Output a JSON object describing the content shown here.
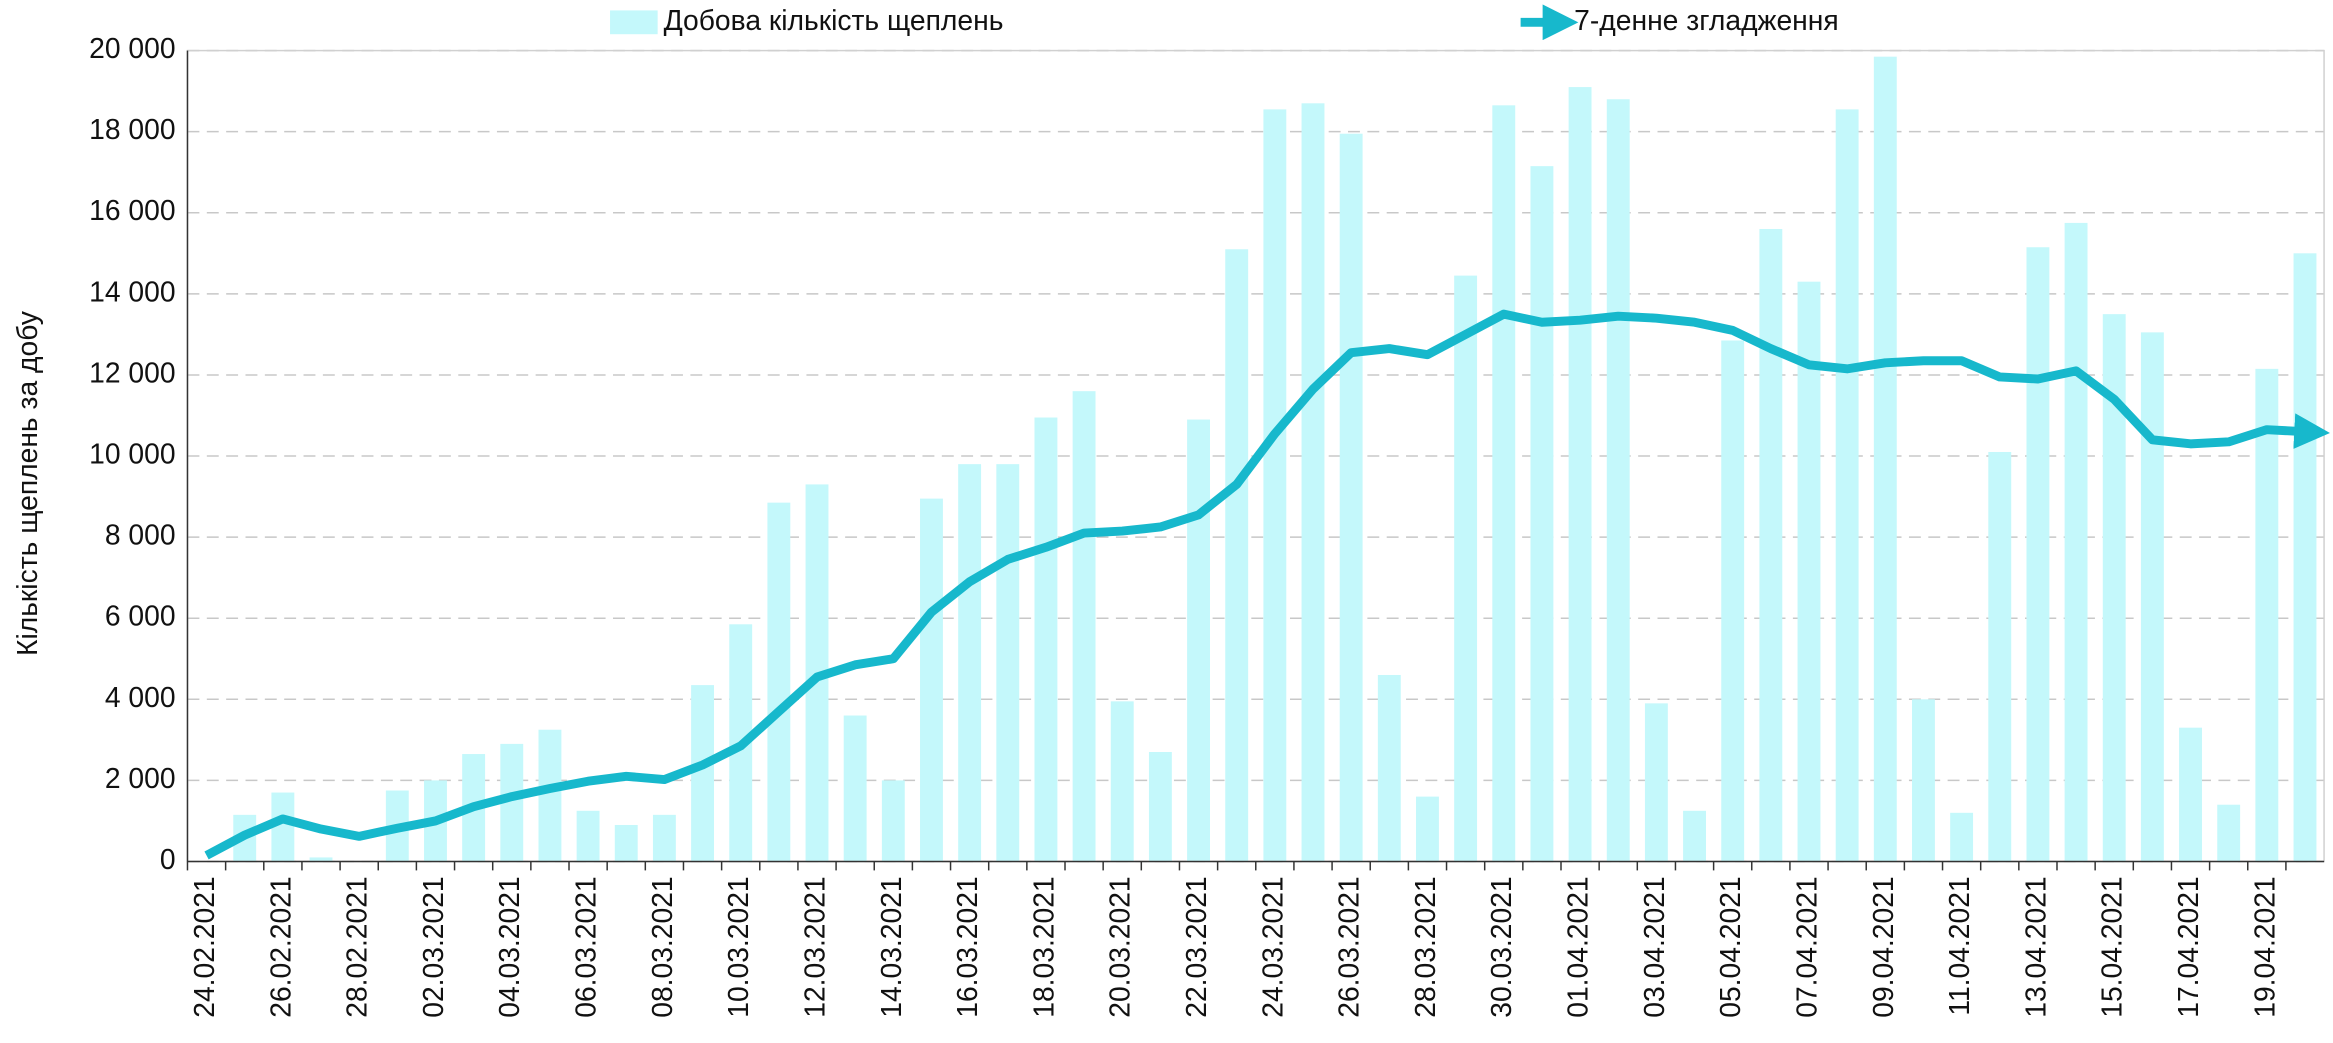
{
  "chart_data": {
    "type": "bar-line",
    "y_axis_label": "Кількість щеплень за добу",
    "categories": [
      "24.02.2021",
      null,
      "26.02.2021",
      null,
      "28.02.2021",
      null,
      "02.03.2021",
      null,
      "04.03.2021",
      null,
      "06.03.2021",
      null,
      "08.03.2021",
      null,
      "10.03.2021",
      null,
      "12.03.2021",
      null,
      "14.03.2021",
      null,
      "16.03.2021",
      null,
      "18.03.2021",
      null,
      "20.03.2021",
      null,
      "22.03.2021",
      null,
      "24.03.2021",
      null,
      "26.03.2021",
      null,
      "28.03.2021",
      null,
      "30.03.2021",
      null,
      "01.04.2021",
      null,
      "03.04.2021",
      null,
      "05.04.2021",
      null,
      "07.04.2021",
      null,
      "09.04.2021",
      null,
      "11.04.2021",
      null,
      "13.04.2021",
      null,
      "15.04.2021",
      null,
      "17.04.2021",
      null,
      "19.04.2021",
      null
    ],
    "series": [
      {
        "name": "Добова кількість щеплень",
        "kind": "bar",
        "color": "#c4f8fb",
        "values": [
          0,
          1150,
          1700,
          100,
          0,
          1750,
          2000,
          2650,
          2900,
          3250,
          1250,
          900,
          1150,
          4350,
          5850,
          8850,
          9300,
          3600,
          2000,
          8950,
          9800,
          9800,
          10950,
          11600,
          3950,
          2700,
          10900,
          15100,
          18550,
          18700,
          17950,
          4600,
          1600,
          14450,
          18650,
          17150,
          19100,
          18800,
          3900,
          1250,
          12850,
          15600,
          14300,
          18550,
          19850,
          4000,
          1200,
          10100,
          15150,
          15750,
          13500,
          13050,
          3300,
          1400,
          12150,
          15000
        ]
      },
      {
        "name": "7-денне згладження",
        "kind": "line",
        "color": "#17b8cc",
        "values": [
          150,
          650,
          1050,
          800,
          620,
          820,
          1000,
          1350,
          1600,
          1800,
          1980,
          2100,
          2020,
          2380,
          2850,
          3700,
          4550,
          4850,
          5000,
          6150,
          6900,
          7450,
          7750,
          8100,
          8150,
          8250,
          8550,
          9300,
          10550,
          11650,
          12550,
          12650,
          12500,
          13000,
          13500,
          13300,
          13350,
          13450,
          13400,
          13300,
          13100,
          12650,
          12250,
          12150,
          12300,
          12350,
          12350,
          11950,
          11900,
          12100,
          11400,
          10400,
          10300,
          10350,
          10650,
          10600
        ]
      }
    ],
    "ylim": [
      0,
      20000
    ],
    "yticks": [
      0,
      {
        "value": 2000,
        "label": "2 000"
      },
      {
        "value": 4000,
        "label": "4 000"
      },
      {
        "value": 6000,
        "label": "6 000"
      },
      {
        "value": 8000,
        "label": "8 000"
      },
      {
        "value": 10000,
        "label": "10 000"
      },
      {
        "value": 12000,
        "label": "12 000"
      },
      {
        "value": 14000,
        "label": "14 000"
      },
      {
        "value": 16000,
        "label": "16 000"
      },
      {
        "value": 18000,
        "label": "18 000"
      },
      {
        "value": 20000,
        "label": "20 000"
      }
    ],
    "grid": true,
    "legend": "top"
  }
}
